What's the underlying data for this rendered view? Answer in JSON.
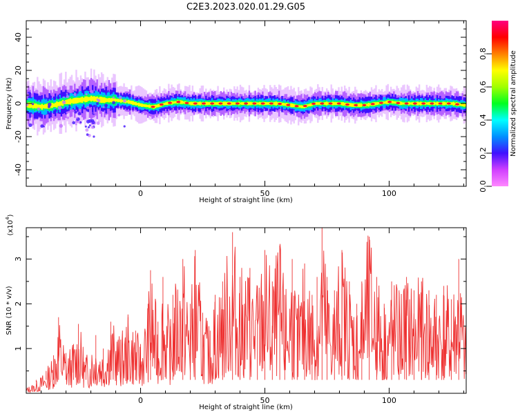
{
  "title": "C2E3.2023.020.01.29.G05",
  "chart_data": [
    {
      "type": "heatmap",
      "xlabel": "Height of straight line (km)",
      "ylabel": "Frequency (Hz)",
      "xlim": [
        -46,
        131
      ],
      "ylim": [
        -50,
        50
      ],
      "xticks": [
        "0",
        "50",
        "100"
      ],
      "xtick_values": [
        0,
        50,
        100
      ],
      "yticks": [
        "40",
        "20",
        "0",
        "-20",
        "-40"
      ],
      "ytick_values": [
        40,
        20,
        0,
        -20,
        -40
      ],
      "colorbar": {
        "label": "Normalized spectral amplitude",
        "range": [
          0,
          1
        ],
        "ticks": [
          "0.0",
          "0.2",
          "0.4",
          "0.6",
          "0.8"
        ],
        "tick_values": [
          0,
          0.2,
          0.4,
          0.6,
          0.8
        ],
        "colors": [
          "#ff88ff",
          "#d040ff",
          "#4010ff",
          "#0090ff",
          "#00ffff",
          "#00ff20",
          "#a0ff00",
          "#ffff00",
          "#ff8000",
          "#ff0000",
          "#ff0080"
        ]
      },
      "band_center": [
        {
          "x": -45,
          "y": -1
        },
        {
          "x": -40,
          "y": -2
        },
        {
          "x": -35,
          "y": -1
        },
        {
          "x": -30,
          "y": 1
        },
        {
          "x": -25,
          "y": 2
        },
        {
          "x": -20,
          "y": 3
        },
        {
          "x": -15,
          "y": 2
        },
        {
          "x": -10,
          "y": 2
        },
        {
          "x": -5,
          "y": 1
        },
        {
          "x": 0,
          "y": -1
        },
        {
          "x": 5,
          "y": -2
        },
        {
          "x": 10,
          "y": 0
        },
        {
          "x": 15,
          "y": 1
        },
        {
          "x": 20,
          "y": 0
        },
        {
          "x": 25,
          "y": 0
        },
        {
          "x": 30,
          "y": 0
        },
        {
          "x": 35,
          "y": 0
        },
        {
          "x": 40,
          "y": 0
        },
        {
          "x": 45,
          "y": 0
        },
        {
          "x": 50,
          "y": 0
        },
        {
          "x": 55,
          "y": 0
        },
        {
          "x": 60,
          "y": -1
        },
        {
          "x": 65,
          "y": -2
        },
        {
          "x": 70,
          "y": 0
        },
        {
          "x": 75,
          "y": 0
        },
        {
          "x": 80,
          "y": 0
        },
        {
          "x": 85,
          "y": -1
        },
        {
          "x": 90,
          "y": -1
        },
        {
          "x": 95,
          "y": 0
        },
        {
          "x": 100,
          "y": 1
        },
        {
          "x": 105,
          "y": 0
        },
        {
          "x": 110,
          "y": 0
        },
        {
          "x": 115,
          "y": 0
        },
        {
          "x": 120,
          "y": 0
        },
        {
          "x": 125,
          "y": 0
        },
        {
          "x": 130,
          "y": -1
        }
      ]
    },
    {
      "type": "line",
      "xlabel": "Height of straight line (km)",
      "ylabel": "SNR (10 * v/v)",
      "scale_label": "(x10",
      "scale_exponent": "4",
      "scale_suffix": ")",
      "xlim": [
        -46,
        131
      ],
      "ylim": [
        0,
        3.7
      ],
      "xticks": [
        "0",
        "50",
        "100"
      ],
      "xtick_values": [
        0,
        50,
        100
      ],
      "yticks": [
        "1",
        "2",
        "3"
      ],
      "ytick_values": [
        1,
        2,
        3
      ],
      "color": "#ee3030",
      "series": [
        {
          "values": [
            {
              "x": -46,
              "y": 0.12
            },
            {
              "x": -42,
              "y": 0.25
            },
            {
              "x": -38,
              "y": 0.5
            },
            {
              "x": -35,
              "y": 0.85
            },
            {
              "x": -33,
              "y": 1.7
            },
            {
              "x": -30,
              "y": 0.9
            },
            {
              "x": -27,
              "y": 1.1
            },
            {
              "x": -25,
              "y": 1.55
            },
            {
              "x": -22,
              "y": 0.8
            },
            {
              "x": -18,
              "y": 1.3
            },
            {
              "x": -15,
              "y": 1.0
            },
            {
              "x": -12,
              "y": 1.6
            },
            {
              "x": -8,
              "y": 1.2
            },
            {
              "x": -5,
              "y": 1.7
            },
            {
              "x": -2,
              "y": 1.4
            },
            {
              "x": 0,
              "y": 1.1
            },
            {
              "x": 3,
              "y": 2.0
            },
            {
              "x": 4,
              "y": 2.75
            },
            {
              "x": 7,
              "y": 1.6
            },
            {
              "x": 9,
              "y": 2.6
            },
            {
              "x": 12,
              "y": 1.5
            },
            {
              "x": 13,
              "y": 2.2
            },
            {
              "x": 17,
              "y": 3.0
            },
            {
              "x": 20,
              "y": 2.0
            },
            {
              "x": 22,
              "y": 3.2
            },
            {
              "x": 25,
              "y": 1.8
            },
            {
              "x": 28,
              "y": 1.4
            },
            {
              "x": 30,
              "y": 2.2
            },
            {
              "x": 33,
              "y": 2.5
            },
            {
              "x": 37,
              "y": 3.6
            },
            {
              "x": 40,
              "y": 2.6
            },
            {
              "x": 44,
              "y": 2.8
            },
            {
              "x": 47,
              "y": 2.4
            },
            {
              "x": 50,
              "y": 3.2
            },
            {
              "x": 53,
              "y": 2.5
            },
            {
              "x": 56,
              "y": 3.3
            },
            {
              "x": 58,
              "y": 2.2
            },
            {
              "x": 61,
              "y": 3.0
            },
            {
              "x": 63,
              "y": 1.9
            },
            {
              "x": 66,
              "y": 2.9
            },
            {
              "x": 69,
              "y": 2.2
            },
            {
              "x": 71,
              "y": 2.6
            },
            {
              "x": 73,
              "y": 3.7
            },
            {
              "x": 75,
              "y": 2.6
            },
            {
              "x": 78,
              "y": 2.3
            },
            {
              "x": 81,
              "y": 3.2
            },
            {
              "x": 84,
              "y": 2.5
            },
            {
              "x": 87,
              "y": 2.0
            },
            {
              "x": 89,
              "y": 2.5
            },
            {
              "x": 92,
              "y": 3.5
            },
            {
              "x": 95,
              "y": 2.6
            },
            {
              "x": 98,
              "y": 2.0
            },
            {
              "x": 101,
              "y": 2.5
            },
            {
              "x": 104,
              "y": 2.3
            },
            {
              "x": 107,
              "y": 2.6
            },
            {
              "x": 110,
              "y": 2.3
            },
            {
              "x": 113,
              "y": 2.5
            },
            {
              "x": 116,
              "y": 2.3
            },
            {
              "x": 119,
              "y": 2.2
            },
            {
              "x": 122,
              "y": 2.4
            },
            {
              "x": 125,
              "y": 2.1
            },
            {
              "x": 128,
              "y": 3.0
            },
            {
              "x": 131,
              "y": 1.2
            }
          ]
        }
      ]
    }
  ]
}
